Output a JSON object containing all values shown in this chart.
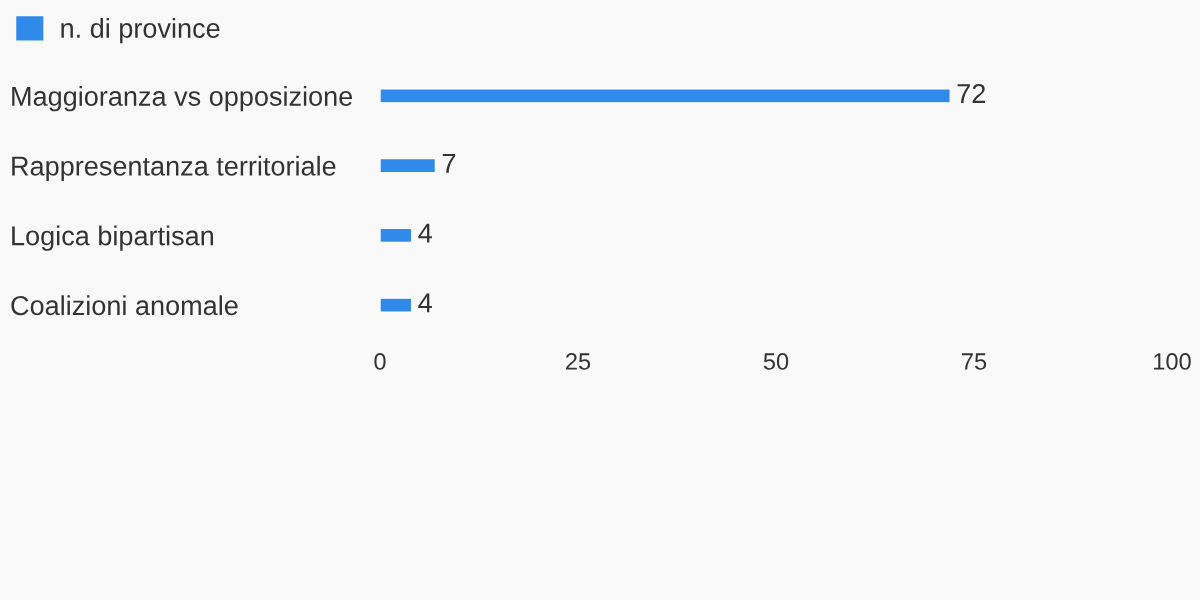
{
  "chart_data": {
    "type": "bar",
    "orientation": "horizontal",
    "categories": [
      "Maggioranza vs opposizione",
      "Rappresentanza territoriale",
      "Logica bipartisan",
      "Coalizioni anomale"
    ],
    "series": [
      {
        "name": "n. di province",
        "color": "#308ae9",
        "values": [
          72,
          7,
          4,
          4
        ]
      }
    ],
    "xlim": [
      0,
      100
    ],
    "xticks": [
      0,
      25,
      50,
      75,
      100
    ],
    "data_labels": true,
    "legend": "top left",
    "grid": false
  }
}
